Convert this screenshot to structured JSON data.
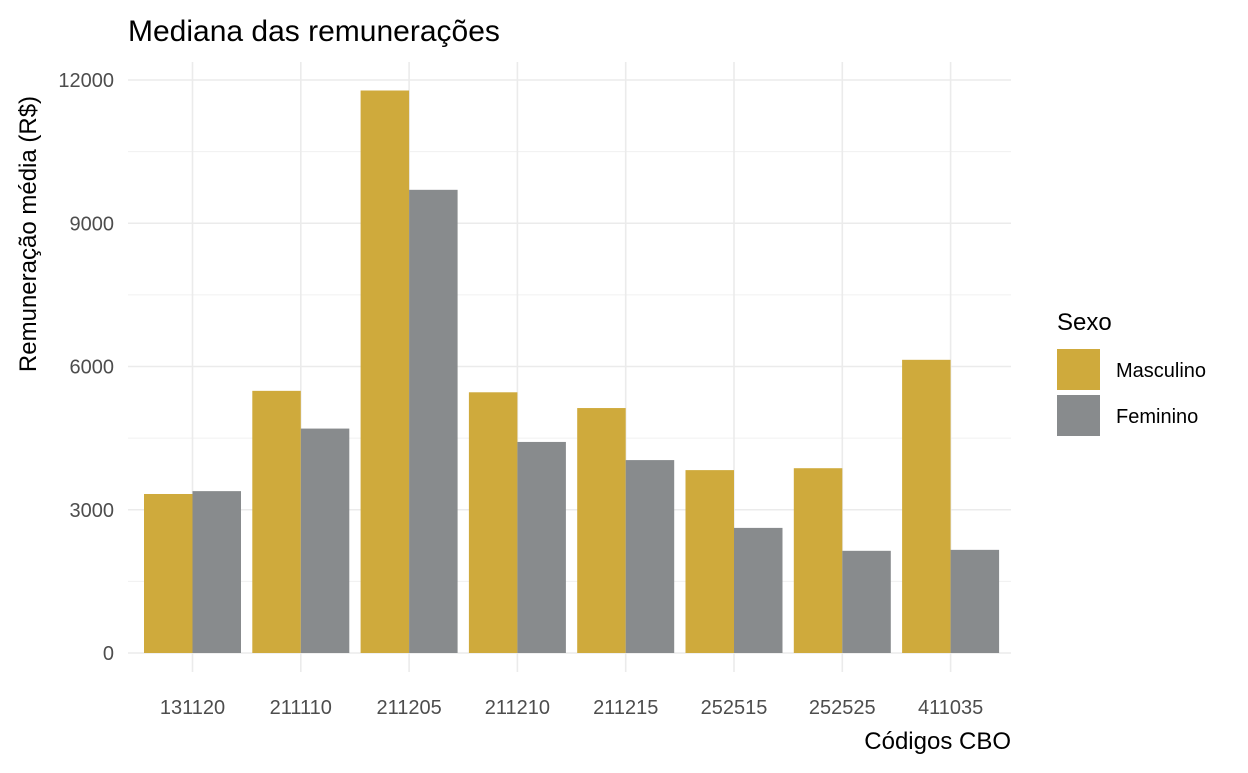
{
  "chart_data": {
    "type": "bar",
    "title": "Mediana das remunerações",
    "xlabel": "Códigos CBO",
    "ylabel": "Remuneração média (R$)",
    "categories": [
      "131120",
      "211110",
      "211205",
      "211210",
      "211215",
      "252515",
      "252525",
      "411035"
    ],
    "series": [
      {
        "name": "Masculino",
        "color": "#CFAA3C",
        "values": [
          3330,
          5490,
          11780,
          5460,
          5130,
          3830,
          3870,
          6140
        ]
      },
      {
        "name": "Feminino",
        "color": "#888B8D",
        "values": [
          3390,
          4700,
          9700,
          4420,
          4040,
          2620,
          2140,
          2160
        ]
      }
    ],
    "ylim": [
      0,
      12000
    ],
    "y_ticks": [
      0,
      3000,
      6000,
      9000,
      12000
    ],
    "grid": true,
    "legend": {
      "title": "Sexo",
      "position": "right"
    }
  }
}
